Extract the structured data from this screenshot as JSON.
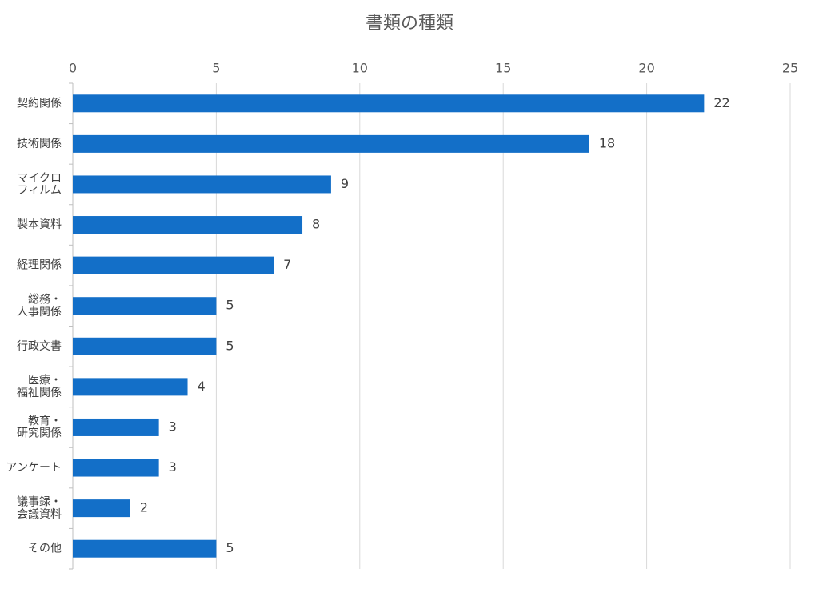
{
  "chart_data": {
    "type": "bar",
    "orientation": "horizontal",
    "title": "書類の種類",
    "categories": [
      "契約関係",
      "技術関係",
      "マイクロ\nフィルム",
      "製本資料",
      "経理関係",
      "総務・\n人事関係",
      "行政文書",
      "医療・\n福祉関係",
      "教育・\n研究関係",
      "アンケート",
      "議事録・\n会議資料",
      "その他"
    ],
    "values": [
      22,
      18,
      9,
      8,
      7,
      5,
      5,
      4,
      3,
      3,
      2,
      5
    ],
    "color": "#136fc8",
    "xlim": [
      0,
      25
    ],
    "xticks": [
      0,
      5,
      10,
      15,
      20,
      25
    ],
    "grid": true
  }
}
